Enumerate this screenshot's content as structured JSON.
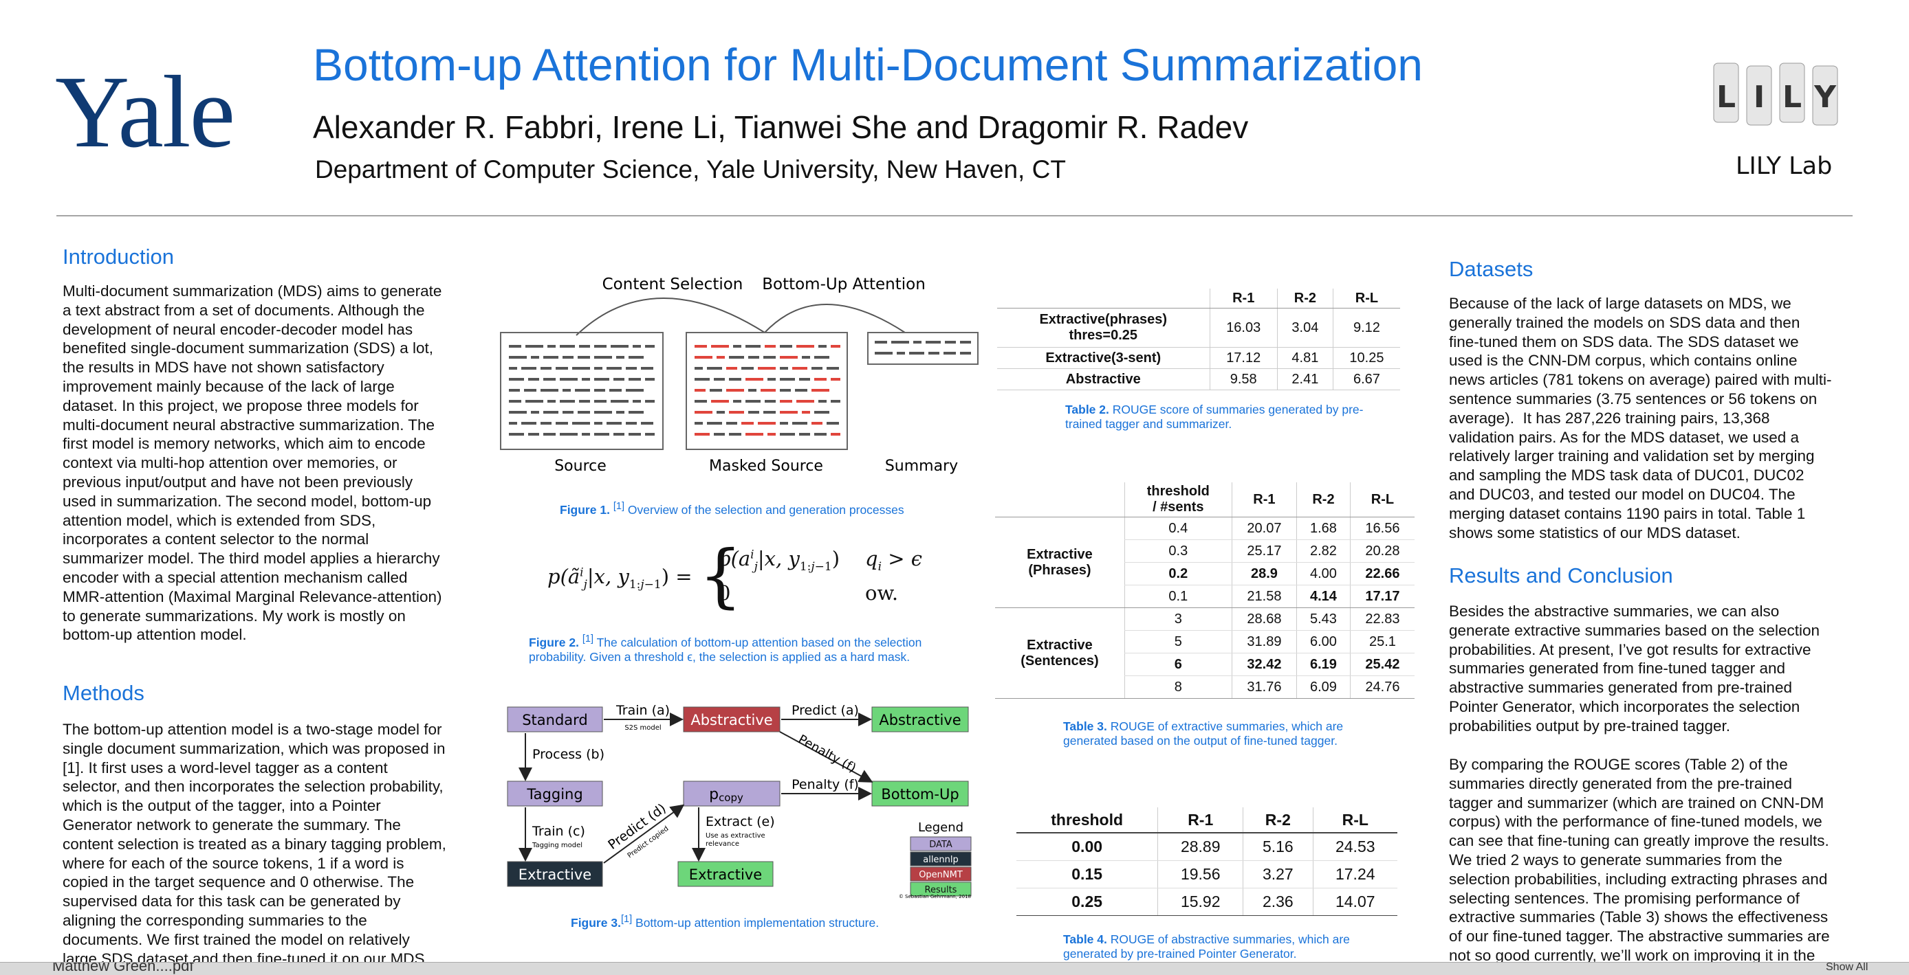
{
  "header": {
    "logo_text": "Yale",
    "title": "Bottom-up Attention for Multi-Document Summarization",
    "authors": "Alexander R. Fabbri, Irene Li, Tianwei She and Dragomir R. Radev",
    "affiliation": "Department of Computer Science, Yale University, New Haven, CT",
    "lab": "LILY Lab",
    "lab_logo_letters": [
      "L",
      "I",
      "L",
      "Y"
    ]
  },
  "introduction": {
    "heading": "Introduction",
    "lines": [
      "Multi-document summarization (MDS) aims to generate",
      "a text abstract from a set of documents. Although the",
      "development of neural encoder-decoder model has",
      "benefited single-document summarization (SDS) a lot,",
      "the results in MDS have not shown satisfactory",
      "improvement mainly because of the lack of large",
      "dataset. In this project, we propose three models for",
      "multi-document neural abstractive summarization. The",
      "first model is memory networks, which aim to encode",
      "context via multi-hop attention over memories, or",
      "previous input/output and have not been previously",
      "used in summarization. The second model, bottom-up",
      "attention model, which is extended from SDS,",
      "incorporates a content selector to the normal",
      "summarizer model. The third model applies a hierarchy",
      "encoder with a special attention mechanism called",
      "MMR-attention (Maximal Marginal Relevance-attention)",
      "to generate summarizations. My work is mostly on",
      "bottom-up attention model."
    ]
  },
  "methods": {
    "heading": "Methods",
    "lines": [
      "The bottom-up attention model is a two-stage model for",
      "single document summarization, which was proposed in",
      "[1]. It first uses a word-level tagger as a content",
      "selector, and then incorporates the selection probability,",
      "which is the output of the tagger, into a Pointer",
      "Generator network to generate the summary. The",
      "content selection is treated as a binary tagging problem,",
      "where for each of the source tokens, 1 if a word is",
      "copied in the target sequence and 0 otherwise. The",
      "supervised data for this task can be generated by",
      "aligning the corresponding summaries to the",
      "documents. We first trained the model on relatively",
      "large SDS dataset and then fine-tuned it on our MDS"
    ]
  },
  "figure1": {
    "label_content_selection": "Content Selection",
    "label_bottom_up": "Bottom-Up Attention",
    "label_source": "Source",
    "label_masked": "Masked Source",
    "label_summary": "Summary",
    "caption_num": "Figure 1.",
    "caption_ref": "[1]",
    "caption_text": " Overview of the selection and generation processes"
  },
  "figure2": {
    "formula_lhs": "p(ã",
    "formula_case1": "p(a",
    "formula_cond1": "q",
    "formula_case2": "0",
    "formula_cond2": "ow.",
    "caption_num": "Figure 2.",
    "caption_ref": "[1]",
    "caption_line1": " The calculation of bottom-up attention based on the selection",
    "caption_line2": "probability. Given a threshold ϵ, the selection is applied as a hard mask."
  },
  "figure3": {
    "standard": "Standard",
    "abstractive_red": "Abstractive",
    "abstractive_green": "Abstractive",
    "train_a": "Train (a)",
    "train_a_sub": "S2S model",
    "predict_a": "Predict (a)",
    "process_b": "Process (b)",
    "penalty_f_diag": "Penalty (f)",
    "tagging": "Tagging",
    "pcopy": "p",
    "pcopy_sub": "copy",
    "penalty_f": "Penalty (f)",
    "bottom_up": "Bottom-Up",
    "train_c": "Train (c)",
    "train_c_sub": "Tagging model",
    "predict_d": "Predict (d)",
    "predict_d_sub": "Predict copied",
    "extract_e": "Extract (e)",
    "extract_e_sub1": "Use as extractive",
    "extract_e_sub2": "relevance",
    "extractive_dark": "Extractive",
    "extractive_green": "Extractive",
    "legend_title": "Legend",
    "legend_items": [
      "DATA",
      "allennlp",
      "OpenNMT",
      "Results"
    ],
    "copyright": "© Sebastian Gehrmann, 2018",
    "caption_num": "Figure 3.",
    "caption_ref": "[1]",
    "caption_text": " Bottom-up attention implementation structure."
  },
  "table2": {
    "headers": [
      "",
      "R-1",
      "R-2",
      "R-L"
    ],
    "rows": [
      [
        "Extractive(phrases)\nthres=0.25",
        "16.03",
        "3.04",
        "9.12"
      ],
      [
        "Extractive(3-sent)",
        "17.12",
        "4.81",
        "10.25"
      ],
      [
        "Abstractive",
        "9.58",
        "2.41",
        "6.67"
      ]
    ],
    "caption_num": "Table 2.",
    "caption_line1": " ROUGE score of summaries generated by pre-",
    "caption_line2": "trained tagger and summarizer."
  },
  "table3": {
    "headers": [
      "",
      "threshold\n/ #sents",
      "R-1",
      "R-2",
      "R-L"
    ],
    "group1": "Extractive\n(Phrases)",
    "group2": "Extractive\n(Sentences)",
    "rows": [
      [
        "0.4",
        "20.07",
        "1.68",
        "16.56"
      ],
      [
        "0.3",
        "25.17",
        "2.82",
        "20.28"
      ],
      [
        "0.2",
        "28.9",
        "4.00",
        "22.66"
      ],
      [
        "0.1",
        "21.58",
        "4.14",
        "17.17"
      ],
      [
        "3",
        "28.68",
        "5.43",
        "22.83"
      ],
      [
        "5",
        "31.89",
        "6.00",
        "25.1"
      ],
      [
        "6",
        "32.42",
        "6.19",
        "25.42"
      ],
      [
        "8",
        "31.76",
        "6.09",
        "24.76"
      ]
    ],
    "caption_num": "Table 3.",
    "caption_line1": " ROUGE of extractive summaries, which are",
    "caption_line2": "generated based on the output of fine-tuned tagger."
  },
  "table4": {
    "headers": [
      "threshold",
      "R-1",
      "R-2",
      "R-L"
    ],
    "rows": [
      [
        "0.00",
        "28.89",
        "5.16",
        "24.53"
      ],
      [
        "0.15",
        "19.56",
        "3.27",
        "17.24"
      ],
      [
        "0.25",
        "15.92",
        "2.36",
        "14.07"
      ]
    ],
    "caption_num": "Table 4.",
    "caption_line1": " ROUGE of abstractive summaries, which are",
    "caption_line2": "generated by pre-trained Pointer Generator."
  },
  "datasets": {
    "heading": "Datasets",
    "lines": [
      "Because of the lack of large datasets on MDS, we",
      "generally trained the models on SDS data and then",
      "fine-tuned them on SDS data. The SDS dataset we",
      "used is the CNN-DM corpus, which contains online",
      "news articles (781 tokens on average) paired with multi-",
      "sentence summaries (3.75 sentences or 56 tokens on",
      "average).  It has 287,226 training pairs, 13,368",
      "validation pairs. As for the MDS dataset, we used a",
      "relatively larger training and validation set by merging",
      "and sampling the MDS task data of DUC01, DUC02",
      "and DUC03, and tested our model on DUC04. The",
      "merging dataset contains 1190 pairs in total. Table 1",
      "shows some statistics of our MDS dataset."
    ]
  },
  "results": {
    "heading": "Results and Conclusion",
    "lines1": [
      "Besides the abstractive summaries, we can also",
      "generate extractive summaries based on the selection",
      "probabilities. At present, I’ve got results for extractive",
      "summaries generated from fine-tuned tagger and",
      "abstractive summaries generated from pre-trained",
      "Pointer Generator, which incorporates the selection",
      "probabilities output by pre-trained tagger."
    ],
    "lines2": [
      "By comparing the ROUGE scores (Table 2) of the",
      "summaries directly generated from the pre-trained",
      "tagger and summarizer (which are trained on CNN-DM",
      "corpus) with the performance of fine-tuned models, we",
      "can see that fine-tuning can greatly improve the results.",
      "We tried 2 ways to generate summaries from the",
      "selection probabilities, including extracting phrases and",
      "selecting sentences. The promising performance of",
      "extractive summaries (Table 3) shows the effectiveness",
      "of our fine-tuned tagger. The abstractive summaries are",
      "not so good currently, we’ll work on improving it in the"
    ]
  },
  "taskbar": {
    "item1": "Matthew Green....pdf",
    "item2": "Show All"
  },
  "colors": {
    "accent_blue": "#1a73d9",
    "yale_blue": "#0f3a73",
    "box_purple": "#b4a7d6",
    "box_red": "#b64045",
    "box_green": "#6dd67a",
    "box_dark": "#22313d"
  }
}
